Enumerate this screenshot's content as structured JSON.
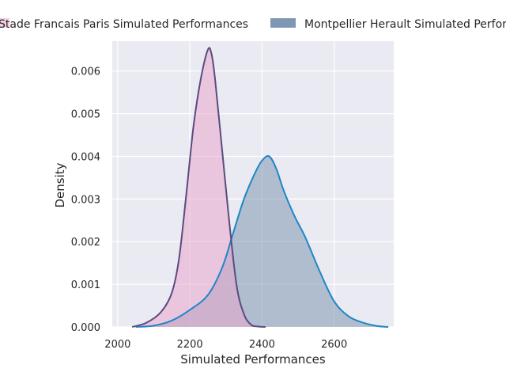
{
  "chart_data": {
    "type": "area",
    "title": "",
    "xlabel": "Simulated Performances",
    "ylabel": "Density",
    "xlim": [
      1985,
      2765
    ],
    "ylim": [
      0,
      0.0067
    ],
    "x_ticks": [
      2000,
      2200,
      2400,
      2600
    ],
    "x_tick_labels": [
      "2000",
      "2200",
      "2400",
      "2600"
    ],
    "y_ticks": [
      0,
      0.001,
      0.002,
      0.003,
      0.004,
      0.005,
      0.006
    ],
    "y_tick_labels": [
      "0.000",
      "0.001",
      "0.002",
      "0.003",
      "0.004",
      "0.005",
      "0.006"
    ],
    "grid": true,
    "legend_position": "top",
    "series": [
      {
        "name": "Stade Francais Paris Simulated Performances",
        "fill_color": "#e8a8cc",
        "line_color": "#5c4a80",
        "x": [
          2040,
          2080,
          2120,
          2150,
          2170,
          2190,
          2210,
          2230,
          2250,
          2260,
          2270,
          2290,
          2310,
          2330,
          2350,
          2370,
          2390,
          2410
        ],
        "y": [
          0,
          0.0001,
          0.00035,
          0.0008,
          0.0016,
          0.0031,
          0.0047,
          0.0058,
          0.0065,
          0.0064,
          0.0058,
          0.0041,
          0.0024,
          0.00095,
          0.0003,
          5e-05,
          1e-05,
          0
        ]
      },
      {
        "name": "Montpellier Herault Simulated Performances",
        "fill_color": "#7f97b2",
        "line_color": "#1f86c6",
        "x": [
          2050,
          2100,
          2150,
          2200,
          2250,
          2290,
          2320,
          2350,
          2380,
          2400,
          2420,
          2440,
          2460,
          2490,
          2520,
          2560,
          2600,
          2640,
          2680,
          2720,
          2750
        ],
        "y": [
          0,
          3e-05,
          0.00015,
          0.0004,
          0.00075,
          0.0014,
          0.0022,
          0.003,
          0.0036,
          0.0039,
          0.004,
          0.0037,
          0.0032,
          0.0026,
          0.0021,
          0.0013,
          0.0006,
          0.00025,
          0.0001,
          2e-05,
          0
        ]
      }
    ]
  }
}
